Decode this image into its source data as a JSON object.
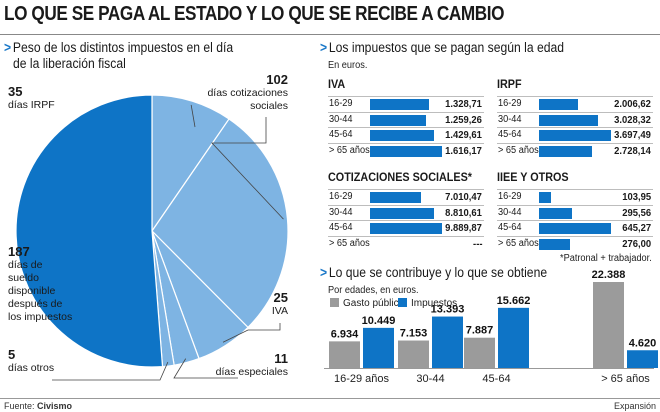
{
  "headline": "LO QUE SE PAGA AL ESTADO Y LO QUE SE RECIBE A CAMBIO",
  "colors": {
    "dark_blue": "#0e74c6",
    "light_blue": "#7eb4e3",
    "gray": "#9b9b9b",
    "accent": "#1a78c8"
  },
  "pie_section": {
    "title_line1": "Peso de los distintos impuestos en el día",
    "title_line2": "de la liberación fiscal",
    "labels": [
      {
        "value": "35",
        "text": [
          "días IRPF"
        ]
      },
      {
        "value": "102",
        "text": [
          "días cotizaciones",
          "sociales"
        ]
      },
      {
        "value": "187",
        "text": [
          "días de",
          "sueldo",
          "disponible",
          "después de",
          "los impuestos"
        ]
      },
      {
        "value": "25",
        "text": [
          "IVA"
        ]
      },
      {
        "value": "5",
        "text": [
          "días otros"
        ]
      },
      {
        "value": "11",
        "text": [
          "días especiales"
        ]
      }
    ]
  },
  "age_section": {
    "title": "Los impuestos que se pagan según la edad",
    "subtitle": "En euros.",
    "footnote": "*Patronal + trabajador.",
    "tables": [
      {
        "title": "IVA",
        "rows": [
          {
            "age": "16-29",
            "value": 1328.71,
            "label": "1.328,71"
          },
          {
            "age": "30-44",
            "value": 1259.26,
            "label": "1.259,26"
          },
          {
            "age": "45-64",
            "value": 1429.61,
            "label": "1.429,61"
          },
          {
            "age": "> 65 años",
            "value": 1616.17,
            "label": "1.616,17"
          }
        ]
      },
      {
        "title": "IRPF",
        "rows": [
          {
            "age": "16-29",
            "value": 2006.62,
            "label": "2.006,62"
          },
          {
            "age": "30-44",
            "value": 3028.32,
            "label": "3.028,32"
          },
          {
            "age": "45-64",
            "value": 3697.49,
            "label": "3.697,49"
          },
          {
            "age": "> 65 años",
            "value": 2728.14,
            "label": "2.728,14"
          }
        ]
      },
      {
        "title": "COTIZACIONES SOCIALES*",
        "rows": [
          {
            "age": "16-29",
            "value": 7010.47,
            "label": "7.010,47"
          },
          {
            "age": "30-44",
            "value": 8810.61,
            "label": "8.810,61"
          },
          {
            "age": "45-64",
            "value": 9889.87,
            "label": "9.889,87"
          },
          {
            "age": "> 65 años",
            "value": 0,
            "label": "---"
          }
        ]
      },
      {
        "title": "IIEE Y OTROS",
        "rows": [
          {
            "age": "16-29",
            "value": 103.95,
            "label": "103,95"
          },
          {
            "age": "30-44",
            "value": 295.56,
            "label": "295,56"
          },
          {
            "age": "45-64",
            "value": 645.27,
            "label": "645,27"
          },
          {
            "age": "> 65 años",
            "value": 276.0,
            "label": "276,00"
          }
        ]
      }
    ]
  },
  "contrib_section": {
    "title": "Lo que se contribuye y lo que se obtiene",
    "subtitle": "Por edades, en euros."
  },
  "footer": {
    "source_prefix": "Fuente: ",
    "source_name": "Civismo",
    "publisher": "Expansión"
  },
  "chart_data": [
    {
      "type": "pie",
      "title": "Peso de los distintos impuestos en el día de la liberación fiscal",
      "categories": [
        "días IRPF",
        "días cotizaciones sociales",
        "IVA",
        "días especiales",
        "días otros",
        "días de sueldo disponible después de los impuestos"
      ],
      "values": [
        35,
        102,
        25,
        11,
        5,
        187
      ]
    },
    {
      "type": "bar",
      "title": "Lo que se contribuye y lo que se obtiene",
      "categories": [
        "16-29 años",
        "30-44",
        "45-64",
        "> 65 años"
      ],
      "series": [
        {
          "name": "Gasto público",
          "values": [
            6934,
            7153,
            7887,
            22388
          ],
          "labels": [
            "6.934",
            "7.153",
            "7.887",
            "22.388"
          ]
        },
        {
          "name": "Impuestos",
          "values": [
            10449,
            13393,
            15662,
            4620
          ],
          "labels": [
            "10.449",
            "13.393",
            "15.662",
            "4.620"
          ]
        }
      ],
      "legend": "top-left"
    }
  ]
}
